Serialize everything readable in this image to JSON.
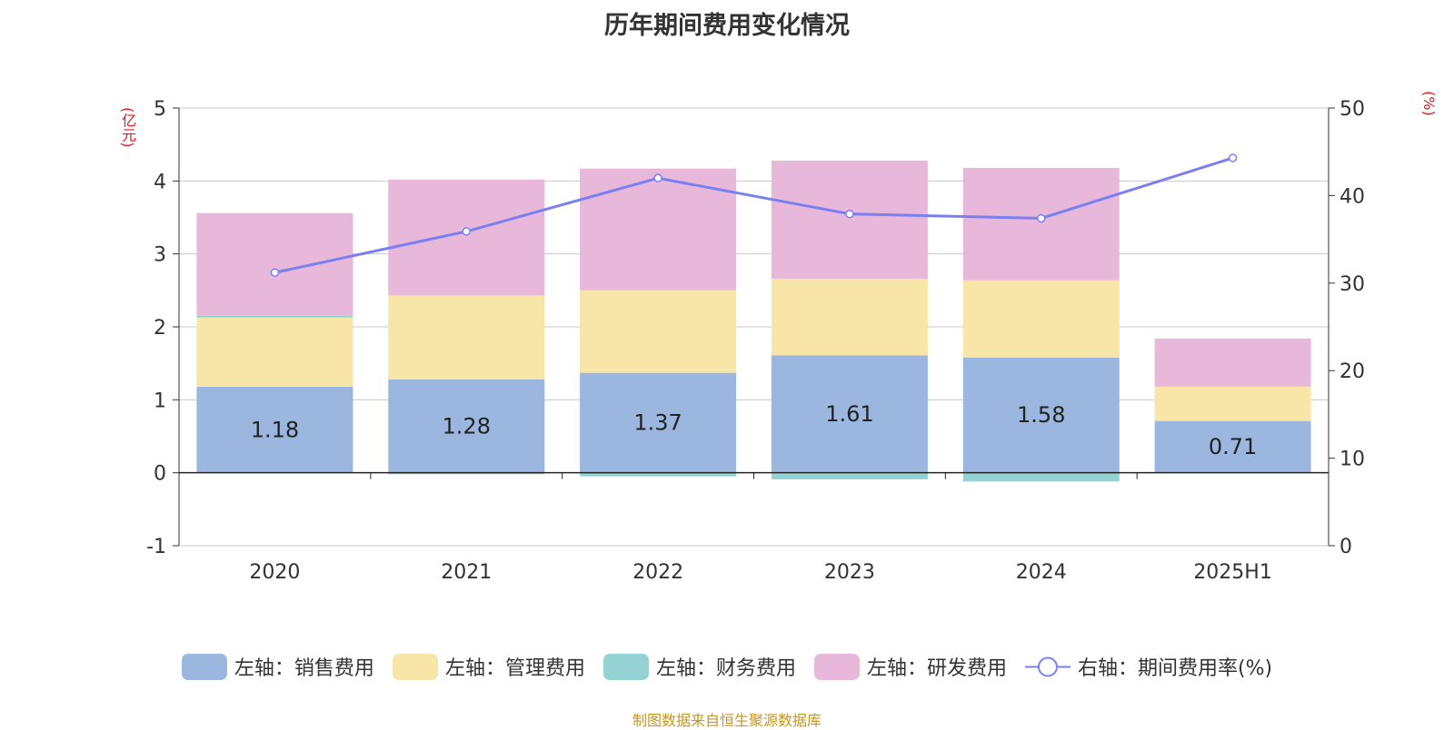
{
  "chart_data": {
    "type": "bar",
    "title": "历年期间费用变化情况",
    "categories": [
      "2020",
      "2021",
      "2022",
      "2023",
      "2024",
      "2025H1"
    ],
    "left_axis": {
      "unit_label": "(亿元)",
      "ylim": [
        -1,
        5
      ],
      "ticks": [
        -1,
        0,
        1,
        2,
        3,
        4,
        5
      ]
    },
    "right_axis": {
      "unit_label": "(%)",
      "ylim": [
        0,
        50
      ],
      "ticks": [
        0,
        10,
        20,
        30,
        40,
        50
      ]
    },
    "series": [
      {
        "name": "左轴：销售费用",
        "type": "bar",
        "axis": "left",
        "color": "#9bb7e0",
        "values": [
          1.18,
          1.28,
          1.37,
          1.61,
          1.58,
          0.71
        ],
        "show_labels": true
      },
      {
        "name": "左轴：管理费用",
        "type": "bar",
        "axis": "left",
        "color": "#f8e6a8",
        "values": [
          0.95,
          1.15,
          1.13,
          1.05,
          1.06,
          0.47
        ],
        "show_labels": false
      },
      {
        "name": "左轴：财务费用",
        "type": "bar",
        "axis": "left",
        "color": "#95d2d3",
        "values": [
          0.02,
          -0.02,
          -0.05,
          -0.09,
          -0.12,
          0.0
        ],
        "show_labels": false
      },
      {
        "name": "左轴：研发费用",
        "type": "bar",
        "axis": "left",
        "color": "#e8b8da",
        "values": [
          1.41,
          1.59,
          1.67,
          1.62,
          1.54,
          0.66
        ],
        "show_labels": false
      },
      {
        "name": "右轴：期间费用率(%)",
        "type": "line",
        "axis": "right",
        "color": "#7b7ff0",
        "values": [
          31.2,
          35.9,
          42.0,
          37.9,
          37.4,
          44.3
        ],
        "show_labels": false
      }
    ],
    "grid": true,
    "legend_position": "bottom"
  },
  "source_note": "制图数据来自恒生聚源数据库"
}
